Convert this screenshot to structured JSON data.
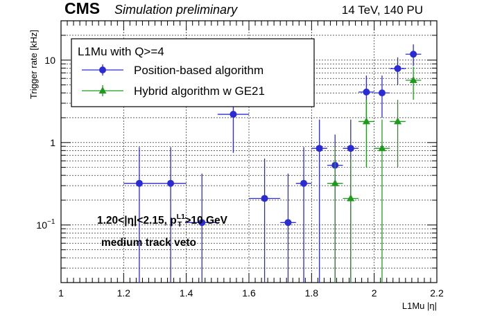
{
  "header": {
    "experiment": "CMS",
    "status": "Simulation preliminary",
    "conditions": "14 TeV, 140 PU"
  },
  "annotations": {
    "cut_prefix": "1.20<|η|<2.15, p",
    "cut_sup": "L1",
    "cut_sub": "T",
    "cut_suffix": ">10 GeV",
    "veto": "medium track veto"
  },
  "colors": {
    "series_0": "#2b2bd6",
    "series_1": "#1f9a1f",
    "grid": "#000000"
  },
  "chart_data": {
    "type": "scatter",
    "xlabel": "L1Mu |η|",
    "ylabel": "Trigger rate [kHz]",
    "xlim": [
      1.0,
      2.2
    ],
    "ylim": [
      0.02,
      30
    ],
    "yscale": "log",
    "grid": true,
    "legend": {
      "title": "L1Mu with Q>=4",
      "placement": "top-left"
    },
    "x_ticks": [
      {
        "value": 1.0,
        "label": "1"
      },
      {
        "value": 1.2,
        "label": "1.2"
      },
      {
        "value": 1.4,
        "label": "1.4"
      },
      {
        "value": 1.6,
        "label": "1.6"
      },
      {
        "value": 1.8,
        "label": "1.8"
      },
      {
        "value": 2.0,
        "label": "2"
      },
      {
        "value": 2.2,
        "label": "2.2"
      }
    ],
    "y_ticks": [
      {
        "value": 0.1,
        "label": "10",
        "sup": "−1"
      },
      {
        "value": 1,
        "label": "1",
        "sup": ""
      },
      {
        "value": 10,
        "label": "10",
        "sup": ""
      }
    ],
    "series": [
      {
        "name": "Position-based algorithm",
        "marker": "circle",
        "points": [
          {
            "x": 1.25,
            "xerr": 0.05,
            "y": 0.32,
            "ylo": 0.02,
            "yhi": 0.88
          },
          {
            "x": 1.35,
            "xerr": 0.05,
            "y": 0.32,
            "ylo": 0.02,
            "yhi": 0.88
          },
          {
            "x": 1.45,
            "xerr": 0.05,
            "y": 0.107,
            "ylo": 0.02,
            "yhi": 0.42
          },
          {
            "x": 1.55,
            "xerr": 0.05,
            "y": 2.2,
            "ylo": 0.75,
            "yhi": 3.6
          },
          {
            "x": 1.65,
            "xerr": 0.05,
            "y": 0.21,
            "ylo": 0.02,
            "yhi": 0.64
          },
          {
            "x": 1.725,
            "xerr": 0.025,
            "y": 0.107,
            "ylo": 0.02,
            "yhi": 0.42
          },
          {
            "x": 1.775,
            "xerr": 0.025,
            "y": 0.32,
            "ylo": 0.02,
            "yhi": 0.88
          },
          {
            "x": 1.825,
            "xerr": 0.025,
            "y": 0.85,
            "ylo": 0.02,
            "yhi": 1.9
          },
          {
            "x": 1.875,
            "xerr": 0.025,
            "y": 0.53,
            "ylo": 0.02,
            "yhi": 1.25
          },
          {
            "x": 1.925,
            "xerr": 0.025,
            "y": 0.85,
            "ylo": 0.02,
            "yhi": 1.9
          },
          {
            "x": 1.975,
            "xerr": 0.025,
            "y": 4.1,
            "ylo": 2.0,
            "yhi": 6.5
          },
          {
            "x": 2.025,
            "xerr": 0.025,
            "y": 4.0,
            "ylo": 2.0,
            "yhi": 6.5
          },
          {
            "x": 2.075,
            "xerr": 0.025,
            "y": 7.9,
            "ylo": 5.0,
            "yhi": 10.8
          },
          {
            "x": 2.125,
            "xerr": 0.025,
            "y": 11.8,
            "ylo": 8.5,
            "yhi": 15.5
          }
        ]
      },
      {
        "name": "Hybrid algorithm w GE21",
        "marker": "triangle",
        "points": [
          {
            "x": 1.875,
            "xerr": 0.025,
            "y": 0.32,
            "ylo": 0.02,
            "yhi": 0.88
          },
          {
            "x": 1.925,
            "xerr": 0.025,
            "y": 0.21,
            "ylo": 0.02,
            "yhi": 0.64
          },
          {
            "x": 1.975,
            "xerr": 0.025,
            "y": 1.8,
            "ylo": 0.5,
            "yhi": 3.3
          },
          {
            "x": 2.025,
            "xerr": 0.025,
            "y": 0.85,
            "ylo": 0.02,
            "yhi": 1.9
          },
          {
            "x": 2.075,
            "xerr": 0.025,
            "y": 1.8,
            "ylo": 0.5,
            "yhi": 3.3
          },
          {
            "x": 2.125,
            "xerr": 0.025,
            "y": 5.7,
            "ylo": 3.3,
            "yhi": 8.3
          }
        ]
      }
    ]
  }
}
